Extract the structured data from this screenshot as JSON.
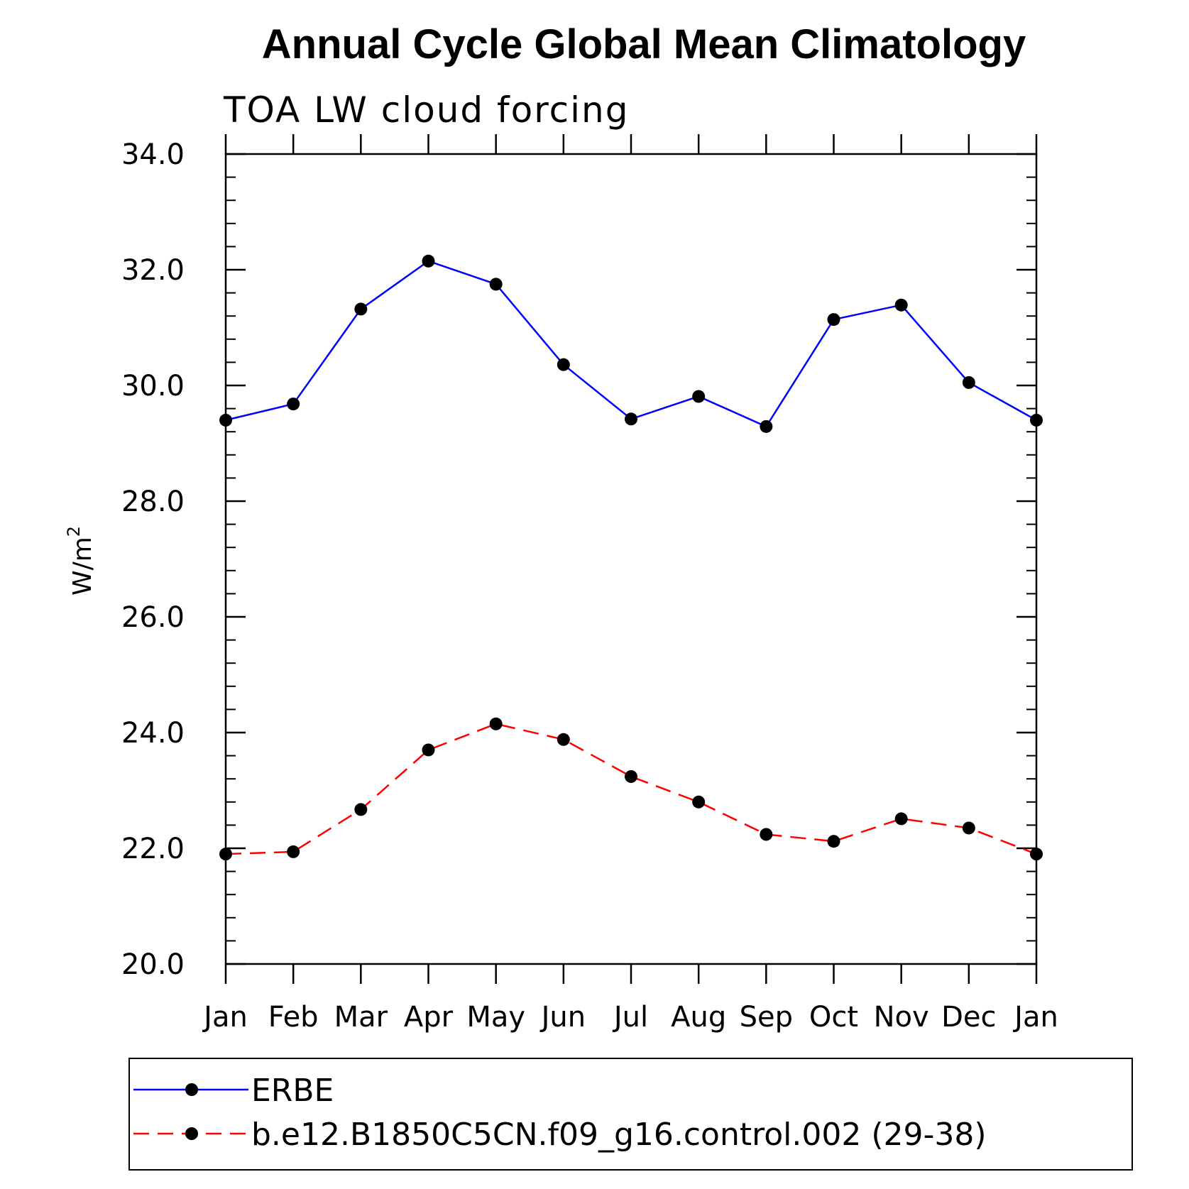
{
  "chart_data": {
    "type": "line",
    "title": "Annual Cycle Global Mean Climatology",
    "subtitle": "TOA LW cloud forcing",
    "ylabel_base": "W/m",
    "ylabel_sup": "2",
    "xlabel": "",
    "categories": [
      "Jan",
      "Feb",
      "Mar",
      "Apr",
      "May",
      "Jun",
      "Jul",
      "Aug",
      "Sep",
      "Oct",
      "Nov",
      "Dec",
      "Jan"
    ],
    "ylim": [
      20,
      34
    ],
    "yticks": [
      "20.0",
      "22.0",
      "24.0",
      "26.0",
      "28.0",
      "30.0",
      "32.0",
      "34.0"
    ],
    "ytick_values": [
      20,
      22,
      24,
      26,
      28,
      30,
      32,
      34
    ],
    "grid": false,
    "legend_position": "bottom",
    "series": [
      {
        "name": "ERBE",
        "color": "#0000ff",
        "dash": "solid",
        "values": [
          29.4,
          29.68,
          31.32,
          32.15,
          31.75,
          30.36,
          29.42,
          29.81,
          29.29,
          31.14,
          31.39,
          30.05,
          29.4
        ]
      },
      {
        "name": "b.e12.B1850C5CN.f09_g16.control.002 (29-38)",
        "color": "#ff0000",
        "dash": "dashed",
        "values": [
          21.9,
          21.94,
          22.67,
          23.7,
          24.15,
          23.88,
          23.24,
          22.8,
          22.24,
          22.12,
          22.51,
          22.35,
          21.9
        ]
      }
    ]
  }
}
